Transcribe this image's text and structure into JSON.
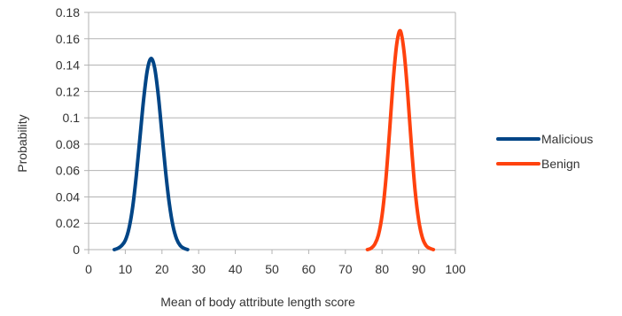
{
  "chart_data": {
    "type": "line",
    "title": "",
    "xlabel": "Mean of body attribute length score",
    "ylabel": "Probability",
    "xlim": [
      0,
      100
    ],
    "ylim": [
      0,
      0.18
    ],
    "x_ticks": [
      "0",
      "10",
      "20",
      "30",
      "40",
      "50",
      "60",
      "70",
      "80",
      "90",
      "100"
    ],
    "y_ticks": [
      "0",
      "0.02",
      "0.04",
      "0.06",
      "0.08",
      "0.1",
      "0.12",
      "0.14",
      "0.16",
      "0.18"
    ],
    "grid": "horizontal",
    "legend_position": "right",
    "series": [
      {
        "name": "Malicious",
        "color": "#004586",
        "x": [
          7,
          8,
          9,
          10,
          11,
          12,
          13,
          14,
          15,
          16,
          17,
          18,
          19,
          20,
          21,
          22,
          23,
          24,
          25,
          26,
          27
        ],
        "y": [
          0.0,
          0.001,
          0.003,
          0.007,
          0.016,
          0.032,
          0.056,
          0.085,
          0.114,
          0.136,
          0.145,
          0.138,
          0.117,
          0.088,
          0.059,
          0.035,
          0.018,
          0.008,
          0.003,
          0.001,
          0.0
        ]
      },
      {
        "name": "Benign",
        "color": "#ff420e",
        "x": [
          76,
          77,
          78,
          79,
          80,
          81,
          82,
          83,
          84,
          85,
          86,
          87,
          88,
          89,
          90,
          91,
          92,
          93,
          94
        ],
        "y": [
          0.0,
          0.001,
          0.004,
          0.011,
          0.026,
          0.052,
          0.088,
          0.127,
          0.156,
          0.166,
          0.15,
          0.118,
          0.079,
          0.045,
          0.022,
          0.009,
          0.003,
          0.001,
          0.0
        ]
      }
    ]
  }
}
